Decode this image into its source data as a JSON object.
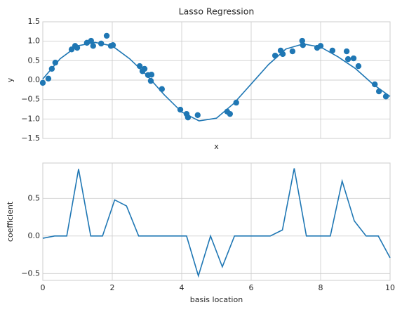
{
  "chart_data": [
    {
      "type": "scatter",
      "title": "Lasso Regression",
      "xlabel": "x",
      "ylabel": "y",
      "xlim": [
        0,
        10
      ],
      "ylim": [
        -1.5,
        1.5
      ],
      "grid": true,
      "xtick_labels": false,
      "xticks": [
        0,
        2,
        4,
        6,
        8,
        10
      ],
      "yticks": [
        {
          "value": -1.5,
          "label": "−1.5"
        },
        {
          "value": -1.0,
          "label": "−1.0"
        },
        {
          "value": -0.5,
          "label": "−0.5"
        },
        {
          "value": 0,
          "label": "0.0"
        },
        0.5,
        {
          "value": 1.0,
          "label": "1.0"
        },
        1.5
      ],
      "series": [
        {
          "type": "scatter",
          "color": "#1f77b4",
          "x": [
            0,
            0.16,
            0.26,
            0.36,
            0.83,
            0.93,
            0.99,
            1.27,
            1.39,
            1.45,
            1.68,
            1.84,
            1.96,
            2.02,
            2.79,
            2.87,
            2.93,
            3.03,
            3.13,
            3.11,
            3.43,
            3.96,
            4.14,
            4.18,
            4.46,
            5.31,
            5.39,
            5.57,
            6.69,
            6.85,
            6.91,
            7.19,
            7.47,
            7.49,
            7.9,
            8.0,
            8.34,
            8.75,
            8.79,
            8.95,
            9.09,
            9.56,
            9.68,
            9.88
          ],
          "values": [
            -0.07,
            0.04,
            0.29,
            0.45,
            0.79,
            0.88,
            0.83,
            0.96,
            1.01,
            0.88,
            0.94,
            1.14,
            0.88,
            0.9,
            0.36,
            0.23,
            0.29,
            0.13,
            0.14,
            -0.02,
            -0.23,
            -0.76,
            -0.87,
            -0.96,
            -0.9,
            -0.81,
            -0.87,
            -0.58,
            0.63,
            0.76,
            0.67,
            0.74,
            1.01,
            0.9,
            0.83,
            0.88,
            0.76,
            0.74,
            0.54,
            0.56,
            0.36,
            -0.11,
            -0.29,
            -0.42
          ]
        },
        {
          "type": "line",
          "color": "#1f77b4",
          "x": [
            0,
            0.5,
            1,
            1.5,
            2,
            2.5,
            3,
            3.5,
            4,
            4.5,
            5,
            5.5,
            6,
            6.5,
            7,
            7.5,
            8,
            8.5,
            9,
            9.5,
            10
          ],
          "values": [
            0.03,
            0.55,
            0.88,
            0.97,
            0.88,
            0.55,
            0.12,
            -0.38,
            -0.82,
            -1.05,
            -0.98,
            -0.6,
            -0.1,
            0.4,
            0.8,
            0.93,
            0.85,
            0.6,
            0.3,
            -0.1,
            -0.42
          ]
        }
      ]
    },
    {
      "type": "line",
      "xlabel": "basis location",
      "ylabel": "coefficient",
      "xlim": [
        0,
        10
      ],
      "ylim": [
        -0.59,
        0.97
      ],
      "grid": true,
      "xtick_labels": true,
      "xticks": [
        0,
        2,
        4,
        6,
        8,
        10
      ],
      "yticks": [
        {
          "value": -0.5,
          "label": "−0.5"
        },
        {
          "value": 0,
          "label": "0.0"
        },
        0.5
      ],
      "series": [
        {
          "type": "line",
          "color": "#1f77b4",
          "x": [
            0,
            0.34,
            0.69,
            1.03,
            1.38,
            1.72,
            2.07,
            2.41,
            2.76,
            3.1,
            3.45,
            3.79,
            4.14,
            4.48,
            4.83,
            5.17,
            5.52,
            5.86,
            6.21,
            6.55,
            6.9,
            7.24,
            7.59,
            7.93,
            8.28,
            8.62,
            8.97,
            9.31,
            9.66,
            10
          ],
          "values": [
            -0.03,
            0,
            0,
            0.89,
            0,
            0,
            0.48,
            0.4,
            0,
            0,
            0,
            0,
            0,
            -0.53,
            0,
            -0.41,
            0,
            0,
            0,
            0,
            0.08,
            0.9,
            0,
            0,
            0,
            0.73,
            0.2,
            0,
            0,
            -0.29
          ]
        }
      ]
    }
  ]
}
